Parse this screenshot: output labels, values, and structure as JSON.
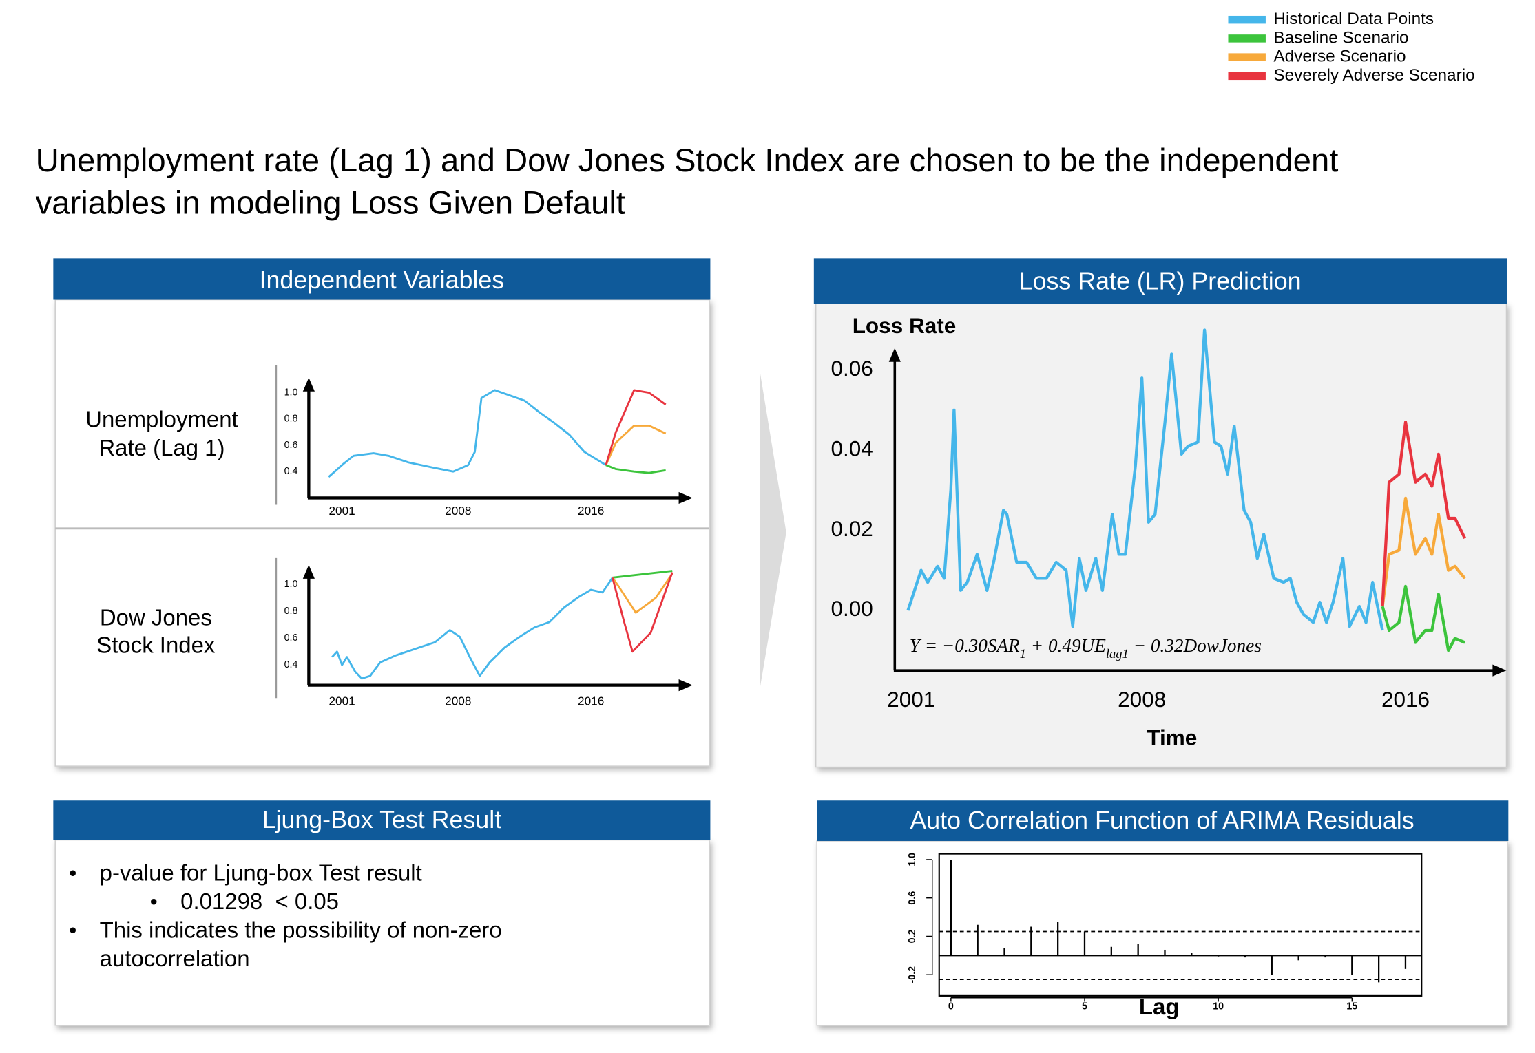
{
  "legend": [
    {
      "name": "Historical Data Points",
      "color": "#45b6ea"
    },
    {
      "name": "Baseline Scenario",
      "color": "#3cc43c"
    },
    {
      "name": "Adverse Scenario",
      "color": "#f7a93b"
    },
    {
      "name": "Severely Adverse Scenario",
      "color": "#e8343f"
    }
  ],
  "title": [
    "Unemployment rate (Lag 1) and Dow Jones Stock Index are chosen to be the independent",
    "variables in modeling Loss Given Default"
  ],
  "panels": [
    "Independent Variables",
    "Loss Rate (LR) Prediction",
    "Ljung-Box Test Result",
    "Auto Correlation Function of ARIMA Residuals"
  ],
  "ljung_box": [
    {
      "lines": [
        "p-value for Ljung-box Test result"
      ],
      "sub": [
        "0.01298  < 0.05"
      ]
    },
    {
      "lines": [
        "This indicates the possibility of non-zero",
        "autocorrelation"
      ]
    }
  ],
  "chart_data": [
    {
      "type": "line",
      "title": [
        "Unemployment",
        "Rate (Lag 1)"
      ],
      "xlim": [
        1999,
        2022
      ],
      "xticks": [
        2001,
        2008,
        2016
      ],
      "ylim": [
        0.2,
        1.1
      ],
      "yticks": [
        0.4,
        0.6,
        0.8,
        {
          "value": 1.0,
          "label": "1.0"
        }
      ],
      "series": [
        {
          "color": "#45b6ea",
          "x": [
            2000.2,
            2001.1,
            2001.7,
            2002.9,
            2003.8,
            2005.0,
            2006.5,
            2007.7,
            2008.6,
            2009.0,
            2009.4,
            2010.2,
            2011.1,
            2012.0,
            2012.9,
            2013.8,
            2014.7,
            2015.6,
            2016.9
          ],
          "values": [
            0.36,
            0.46,
            0.52,
            0.54,
            0.52,
            0.47,
            0.43,
            0.4,
            0.45,
            0.55,
            0.96,
            1.02,
            0.98,
            0.94,
            0.85,
            0.77,
            0.68,
            0.55,
            0.45
          ]
        },
        {
          "color": "#3cc43c",
          "x": [
            2016.9,
            2017.5,
            2018.6,
            2019.5,
            2020.5
          ],
          "values": [
            0.45,
            0.42,
            0.4,
            0.39,
            0.41
          ]
        },
        {
          "color": "#f7a93b",
          "x": [
            2016.9,
            2017.5,
            2018.6,
            2019.5,
            2020.5
          ],
          "values": [
            0.45,
            0.62,
            0.75,
            0.75,
            0.69
          ]
        },
        {
          "color": "#e8343f",
          "x": [
            2016.9,
            2017.5,
            2018.6,
            2019.5,
            2020.5
          ],
          "values": [
            0.45,
            0.7,
            1.02,
            1.0,
            0.91
          ]
        }
      ]
    },
    {
      "type": "line",
      "title": [
        "Dow Jones",
        "Stock Index"
      ],
      "xlim": [
        1999,
        2022
      ],
      "xticks": [
        2001,
        2008,
        2016
      ],
      "ylim": [
        0.25,
        1.13
      ],
      "yticks": [
        0.4,
        0.6,
        0.8,
        {
          "value": 1.0,
          "label": "1.0"
        }
      ],
      "series": [
        {
          "color": "#45b6ea",
          "x": [
            2000.4,
            2000.7,
            2001.0,
            2001.3,
            2001.8,
            2002.2,
            2002.7,
            2003.3,
            2004.2,
            2005.4,
            2006.6,
            2007.5,
            2008.1,
            2008.7,
            2009.3,
            2009.9,
            2010.8,
            2011.7,
            2012.6,
            2013.5,
            2014.4,
            2015.3,
            2016.0,
            2016.7,
            2017.3
          ],
          "values": [
            0.46,
            0.5,
            0.4,
            0.46,
            0.35,
            0.3,
            0.32,
            0.42,
            0.47,
            0.52,
            0.57,
            0.66,
            0.61,
            0.46,
            0.32,
            0.42,
            0.53,
            0.61,
            0.68,
            0.72,
            0.83,
            0.91,
            0.96,
            0.94,
            1.05
          ]
        },
        {
          "color": "#3cc43c",
          "x": [
            2017.3,
            2020.9
          ],
          "values": [
            1.05,
            1.1
          ]
        },
        {
          "color": "#f7a93b",
          "x": [
            2017.3,
            2017.7,
            2018.7,
            2019.9,
            2020.9
          ],
          "values": [
            1.05,
            0.98,
            0.79,
            0.9,
            1.08
          ]
        },
        {
          "color": "#e8343f",
          "x": [
            2017.3,
            2018.0,
            2018.5,
            2019.6,
            2020.9
          ],
          "values": [
            1.05,
            0.72,
            0.5,
            0.64,
            1.09
          ]
        }
      ]
    },
    {
      "type": "line",
      "ylabel": "Loss Rate",
      "xlabel": "Time",
      "annotation": [
        "Y = −0.30SAR",
        "1",
        " + 0.49UE",
        "lag1",
        " − 0.32DowJones"
      ],
      "xlim": [
        2000.5,
        2019
      ],
      "xticks": [
        2001,
        2008,
        2016
      ],
      "ylim": [
        -0.015,
        0.065
      ],
      "yticks": [
        {
          "value": 0,
          "label": "0.00"
        },
        {
          "value": 0.02,
          "label": "0.02"
        },
        {
          "value": 0.04,
          "label": "0.04"
        },
        {
          "value": 0.06,
          "label": "0.06"
        }
      ],
      "series": [
        {
          "color": "#45b6ea",
          "x": [
            2000.9,
            2001.3,
            2001.5,
            2001.8,
            2002.0,
            2002.2,
            2002.3,
            2002.5,
            2002.7,
            2003.0,
            2003.3,
            2003.5,
            2003.8,
            2003.9,
            2004.2,
            2004.5,
            2004.8,
            2005.1,
            2005.4,
            2005.7,
            2005.9,
            2006.1,
            2006.3,
            2006.6,
            2006.8,
            2007.1,
            2007.3,
            2007.5,
            2007.8,
            2008.0,
            2008.2,
            2008.4,
            2008.7,
            2008.9,
            2009.2,
            2009.4,
            2009.7,
            2009.9,
            2010.2,
            2010.4,
            2010.6,
            2010.8,
            2011.1,
            2011.3,
            2011.5,
            2011.7,
            2012.0,
            2012.3,
            2012.5,
            2012.7,
            2012.9,
            2013.2,
            2013.4,
            2013.6,
            2013.8,
            2014.1,
            2014.3,
            2014.6,
            2014.8,
            2015.0,
            2015.3
          ],
          "values": [
            0.0,
            0.01,
            0.007,
            0.011,
            0.008,
            0.03,
            0.05,
            0.005,
            0.007,
            0.014,
            0.005,
            0.012,
            0.025,
            0.024,
            0.012,
            0.012,
            0.008,
            0.008,
            0.012,
            0.01,
            -0.004,
            0.013,
            0.005,
            0.013,
            0.005,
            0.024,
            0.014,
            0.014,
            0.036,
            0.058,
            0.022,
            0.024,
            0.047,
            0.064,
            0.039,
            0.041,
            0.042,
            0.07,
            0.042,
            0.041,
            0.034,
            0.046,
            0.025,
            0.022,
            0.013,
            0.019,
            0.008,
            0.007,
            0.008,
            0.002,
            -0.001,
            -0.003,
            0.002,
            -0.003,
            0.002,
            0.013,
            -0.004,
            0.001,
            -0.003,
            0.007,
            -0.005
          ]
        },
        {
          "color": "#3cc43c",
          "x": [
            2015.3,
            2015.5,
            2015.8,
            2016.0,
            2016.3,
            2016.6,
            2016.8,
            2017.0,
            2017.3,
            2017.5,
            2017.8
          ],
          "values": [
            0.001,
            -0.005,
            -0.003,
            0.006,
            -0.008,
            -0.005,
            -0.005,
            0.004,
            -0.01,
            -0.007,
            -0.008
          ]
        },
        {
          "color": "#f7a93b",
          "x": [
            2015.3,
            2015.5,
            2015.8,
            2016.0,
            2016.3,
            2016.6,
            2016.8,
            2017.0,
            2017.3,
            2017.5,
            2017.8
          ],
          "values": [
            0.001,
            0.014,
            0.015,
            0.028,
            0.014,
            0.018,
            0.014,
            0.024,
            0.01,
            0.011,
            0.008
          ]
        },
        {
          "color": "#e8343f",
          "x": [
            2015.3,
            2015.5,
            2015.8,
            2016.0,
            2016.3,
            2016.6,
            2016.8,
            2017.0,
            2017.3,
            2017.5,
            2017.8
          ],
          "values": [
            0.001,
            0.032,
            0.034,
            0.047,
            0.032,
            0.034,
            0.031,
            0.039,
            0.023,
            0.023,
            0.018
          ]
        }
      ]
    },
    {
      "type": "bar",
      "xlabel": "Lag",
      "xlim": [
        -0.44,
        17.6
      ],
      "xticks": [
        0,
        5,
        10,
        15
      ],
      "ylim": [
        -0.42,
        1.06
      ],
      "yticks": [
        -0.2,
        0.2,
        0.6,
        {
          "value": 1.0,
          "label": "1.0"
        }
      ],
      "confidence_bounds": [
        -0.25,
        0.25
      ],
      "color": "#000000",
      "x": [
        0,
        1,
        2,
        3,
        4,
        5,
        6,
        7,
        8,
        9,
        10,
        11,
        12,
        13,
        14,
        15,
        16,
        17
      ],
      "values": [
        1.0,
        0.32,
        0.08,
        0.3,
        0.35,
        0.25,
        0.09,
        0.12,
        0.06,
        0.03,
        -0.01,
        -0.02,
        -0.2,
        -0.05,
        -0.02,
        -0.2,
        -0.28,
        -0.14
      ]
    }
  ]
}
